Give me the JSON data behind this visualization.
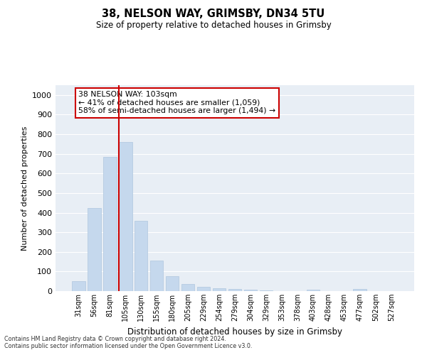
{
  "title1": "38, NELSON WAY, GRIMSBY, DN34 5TU",
  "title2": "Size of property relative to detached houses in Grimsby",
  "xlabel": "Distribution of detached houses by size in Grimsby",
  "ylabel": "Number of detached properties",
  "categories": [
    "31sqm",
    "56sqm",
    "81sqm",
    "105sqm",
    "130sqm",
    "155sqm",
    "180sqm",
    "205sqm",
    "229sqm",
    "254sqm",
    "279sqm",
    "304sqm",
    "329sqm",
    "353sqm",
    "378sqm",
    "403sqm",
    "428sqm",
    "453sqm",
    "477sqm",
    "502sqm",
    "527sqm"
  ],
  "values": [
    50,
    425,
    685,
    760,
    360,
    155,
    75,
    37,
    22,
    14,
    10,
    6,
    5,
    0,
    0,
    8,
    0,
    0,
    10,
    0,
    0
  ],
  "bar_color": "#c5d8ed",
  "bar_edge_color": "#aec6de",
  "vline_color": "#cc0000",
  "annotation_line1": "38 NELSON WAY: 103sqm",
  "annotation_line2": "← 41% of detached houses are smaller (1,059)",
  "annotation_line3": "58% of semi-detached houses are larger (1,494) →",
  "annotation_box_color": "#ffffff",
  "annotation_box_edge": "#cc0000",
  "ylim": [
    0,
    1050
  ],
  "yticks": [
    0,
    100,
    200,
    300,
    400,
    500,
    600,
    700,
    800,
    900,
    1000
  ],
  "bg_color": "#e8eef5",
  "grid_color": "#ffffff",
  "footer1": "Contains HM Land Registry data © Crown copyright and database right 2024.",
  "footer2": "Contains public sector information licensed under the Open Government Licence v3.0."
}
